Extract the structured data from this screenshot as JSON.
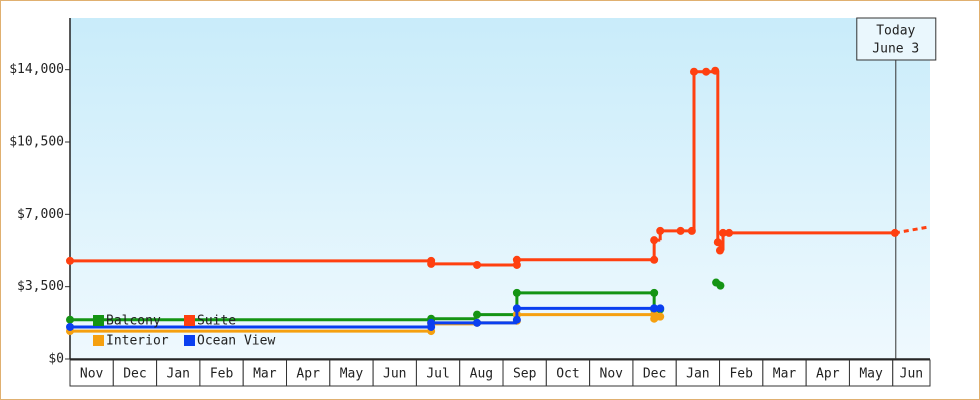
{
  "chart_data": {
    "type": "step-line",
    "categories": [
      "Nov",
      "Dec",
      "Jan",
      "Feb",
      "Mar",
      "Apr",
      "May",
      "Jun",
      "Jul",
      "Aug",
      "Sep",
      "Oct",
      "Nov",
      "Dec",
      "Jan",
      "Feb",
      "Mar",
      "Apr",
      "May",
      "Jun"
    ],
    "xlim": [
      0,
      19.86
    ],
    "ylim": [
      0,
      16500
    ],
    "yticks": [
      {
        "value": 0,
        "label": "$0"
      },
      {
        "value": 3500,
        "label": "$3,500"
      },
      {
        "value": 7000,
        "label": "$7,000"
      },
      {
        "value": 10500,
        "label": "$10,500"
      },
      {
        "value": 14000,
        "label": "$14,000"
      }
    ],
    "series": [
      {
        "name": "Balcony",
        "color": "#149414",
        "x": [
          0,
          8.34,
          8.34,
          9.4,
          10.32,
          10.32,
          13.49,
          13.49,
          13.63,
          14.3,
          14.92,
          15.02
        ],
        "values": [
          1900,
          1900,
          1950,
          2150,
          2150,
          3200,
          3200,
          2400,
          2400,
          null,
          3700,
          3550
        ]
      },
      {
        "name": "Suite",
        "color": "#ff4010",
        "x": [
          0,
          8.34,
          8.34,
          9.4,
          10.32,
          10.32,
          13.49,
          13.49,
          13.63,
          14.1,
          14.36,
          14.41,
          14.69,
          14.9,
          14.96,
          15.01,
          15.08,
          15.22,
          19.05
        ],
        "values": [
          4750,
          4750,
          4600,
          4550,
          4550,
          4800,
          4800,
          5750,
          6200,
          6200,
          6200,
          13900,
          13900,
          13950,
          5650,
          5250,
          6100,
          6100,
          6100
        ],
        "projected_to": {
          "x": 19.86,
          "value": 6400
        }
      },
      {
        "name": "Interior",
        "color": "#f5a010",
        "x": [
          0,
          8.34,
          8.34,
          9.4,
          10.32,
          10.32,
          13.49,
          13.49,
          13.63
        ],
        "values": [
          1350,
          1350,
          1700,
          1750,
          1850,
          2150,
          2150,
          1950,
          2050
        ]
      },
      {
        "name": "Ocean View",
        "color": "#0a3ff0",
        "x": [
          0,
          8.34,
          8.34,
          9.4,
          10.32,
          10.32,
          13.49,
          13.49,
          13.63
        ],
        "values": [
          1550,
          1550,
          1750,
          1750,
          1900,
          2450,
          2450,
          2450,
          2450
        ]
      }
    ],
    "annotation": {
      "x": 19.07,
      "lines": [
        "Today",
        "June 3"
      ]
    }
  }
}
